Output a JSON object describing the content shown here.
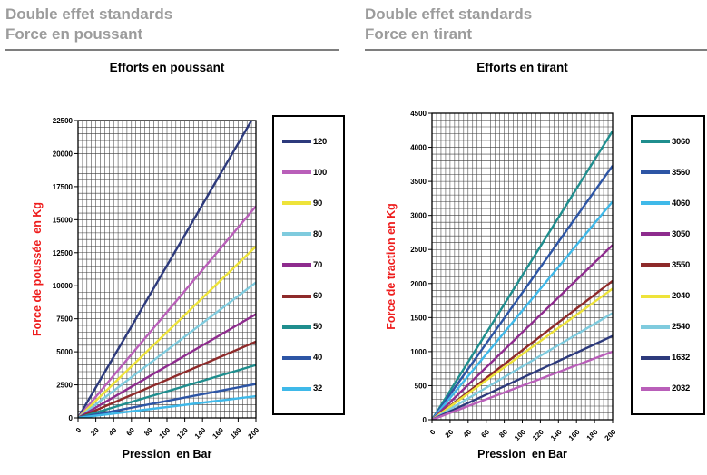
{
  "panels": [
    {
      "header_line1": "Double effet standards",
      "header_line2": "Force en poussant",
      "chart_title": "Efforts en poussant"
    },
    {
      "header_line1": "Double effet standards",
      "header_line2": "Force en tirant",
      "chart_title": "Efforts en tirant"
    }
  ],
  "chart_data": [
    {
      "id": "push",
      "type": "line",
      "title": "Efforts en poussant",
      "xlabel": "Pression  en Bar",
      "ylabel": "Force de poussée  en Kg",
      "xlim": [
        0,
        200
      ],
      "ylim": [
        0,
        22500
      ],
      "x_major_step": 20,
      "x_minor_step": 5,
      "y_major_step": 2500,
      "y_minor_step": 500,
      "x_tick_labels": [
        "0",
        "20",
        "40",
        "60",
        "80",
        "100",
        "120",
        "140",
        "160",
        "180",
        "200"
      ],
      "y_tick_labels": [
        "0",
        "2500",
        "5000",
        "7500",
        "10000",
        "12500",
        "15000",
        "17500",
        "20000",
        "22500"
      ],
      "grid": true,
      "legend_position": "right",
      "x": [
        0,
        200
      ],
      "series": [
        {
          "name": "120",
          "color": "#2D3A7C",
          "values": [
            0,
            23070
          ]
        },
        {
          "name": "100",
          "color": "#B95FB9",
          "values": [
            0,
            16020
          ]
        },
        {
          "name": "90",
          "color": "#EEE33A",
          "values": [
            0,
            12980
          ]
        },
        {
          "name": "80",
          "color": "#7FCBDE",
          "values": [
            0,
            10250
          ]
        },
        {
          "name": "70",
          "color": "#8E2C8E",
          "values": [
            0,
            7850
          ]
        },
        {
          "name": "60",
          "color": "#8E2A2A",
          "values": [
            0,
            5770
          ]
        },
        {
          "name": "50",
          "color": "#1F8E8E",
          "values": [
            0,
            4005
          ]
        },
        {
          "name": "40",
          "color": "#2D55A5",
          "values": [
            0,
            2565
          ]
        },
        {
          "name": "32",
          "color": "#3FB9E9",
          "values": [
            0,
            1640
          ]
        }
      ],
      "axis_title_color": "#ee1c1c"
    },
    {
      "id": "pull",
      "type": "line",
      "title": "Efforts en tirant",
      "xlabel": "Pression  en Bar",
      "ylabel": "Force de traction en Kg",
      "xlim": [
        0,
        200
      ],
      "ylim": [
        0,
        4500
      ],
      "x_major_step": 20,
      "x_minor_step": 5,
      "y_major_step": 500,
      "y_minor_step": 100,
      "x_tick_labels": [
        "0",
        "20",
        "40",
        "60",
        "80",
        "100",
        "120",
        "140",
        "160",
        "180",
        "200"
      ],
      "y_tick_labels": [
        "0",
        "500",
        "1000",
        "1500",
        "2000",
        "2500",
        "3000",
        "3500",
        "4000",
        "4500"
      ],
      "grid": true,
      "legend_position": "right",
      "x": [
        0,
        200
      ],
      "series": [
        {
          "name": "3060",
          "color": "#1F8E8E",
          "values": [
            0,
            4240
          ]
        },
        {
          "name": "3560",
          "color": "#2D55A5",
          "values": [
            0,
            3730
          ]
        },
        {
          "name": "4060",
          "color": "#3FB9E9",
          "values": [
            0,
            3205
          ]
        },
        {
          "name": "3050",
          "color": "#8E2C8E",
          "values": [
            0,
            2565
          ]
        },
        {
          "name": "3550",
          "color": "#8E2A2A",
          "values": [
            0,
            2040
          ]
        },
        {
          "name": "2040",
          "color": "#EEE33A",
          "values": [
            0,
            1925
          ]
        },
        {
          "name": "2540",
          "color": "#7FCBDE",
          "values": [
            0,
            1565
          ]
        },
        {
          "name": "1632",
          "color": "#2D3A7C",
          "values": [
            0,
            1230
          ]
        },
        {
          "name": "2032",
          "color": "#B95FB9",
          "values": [
            0,
            1000
          ]
        }
      ],
      "axis_title_color": "#ee1c1c"
    }
  ]
}
